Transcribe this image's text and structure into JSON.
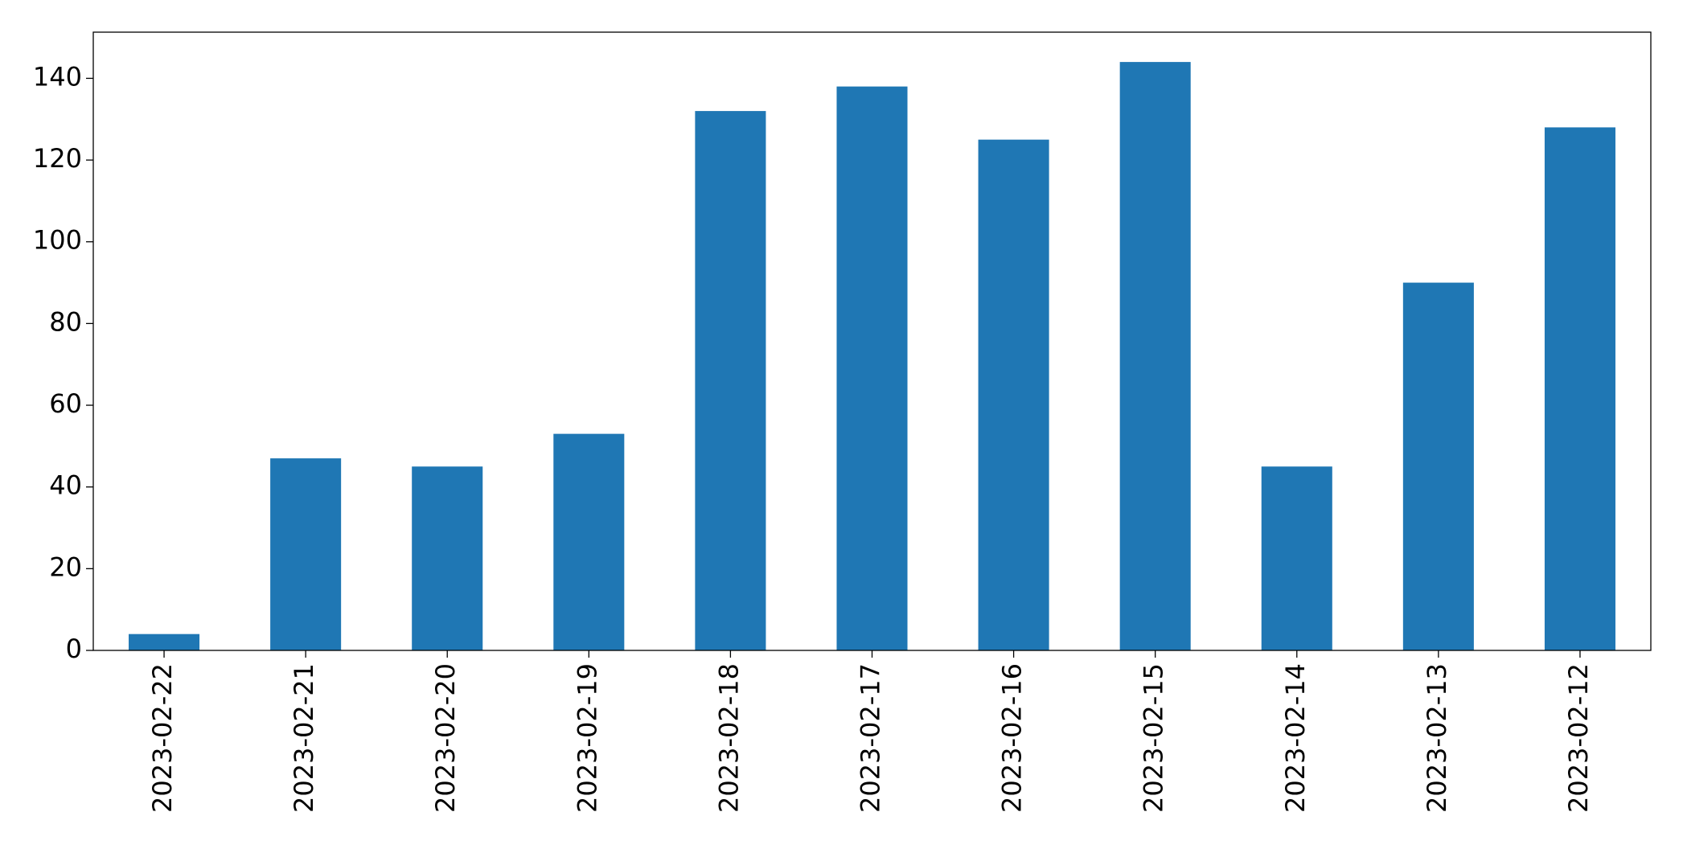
{
  "chart_data": {
    "type": "bar",
    "categories": [
      "2023-02-22",
      "2023-02-21",
      "2023-02-20",
      "2023-02-19",
      "2023-02-18",
      "2023-02-17",
      "2023-02-16",
      "2023-02-15",
      "2023-02-14",
      "2023-02-13",
      "2023-02-12"
    ],
    "values": [
      4,
      47,
      45,
      53,
      132,
      138,
      125,
      144,
      45,
      90,
      128
    ],
    "color": "#1f77b4",
    "ylim": [
      0,
      151.3
    ],
    "yticks": [
      0,
      20,
      40,
      60,
      80,
      100,
      120,
      140
    ],
    "grid": false
  }
}
